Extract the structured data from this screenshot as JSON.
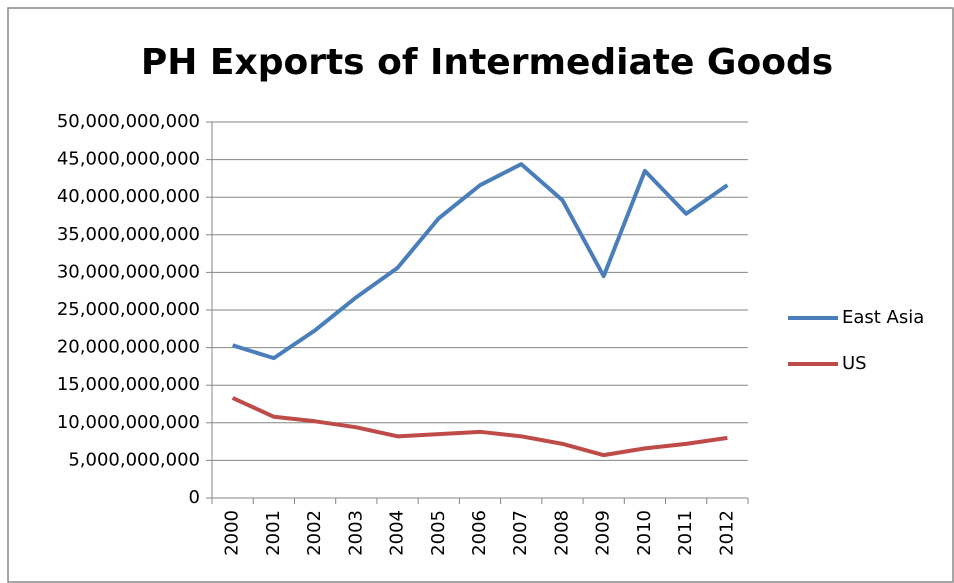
{
  "chart_data": {
    "type": "line",
    "title": "PH Exports of Intermediate Goods",
    "categories": [
      "2000",
      "2001",
      "2002",
      "2003",
      "2004",
      "2005",
      "2006",
      "2007",
      "2008",
      "2009",
      "2010",
      "2011",
      "2012"
    ],
    "series": [
      {
        "name": "East Asia",
        "color": "#4a7ebb",
        "values": [
          20300000000,
          18600000000,
          22300000000,
          26700000000,
          30600000000,
          37200000000,
          41600000000,
          44400000000,
          39600000000,
          29500000000,
          43500000000,
          37800000000,
          41600000000
        ]
      },
      {
        "name": "US",
        "color": "#be4b48",
        "values": [
          13300000000,
          10800000000,
          10200000000,
          9400000000,
          8200000000,
          8500000000,
          8800000000,
          8200000000,
          7200000000,
          5700000000,
          6600000000,
          7200000000,
          8000000000
        ]
      }
    ],
    "ylim": [
      0,
      50000000000
    ],
    "yticks": [
      0,
      {
        "value": 5000000000,
        "label": "5,000,000,000"
      },
      {
        "value": 10000000000,
        "label": "10,000,000,000"
      },
      {
        "value": 15000000000,
        "label": "15,000,000,000"
      },
      {
        "value": 20000000000,
        "label": "20,000,000,000"
      },
      {
        "value": 25000000000,
        "label": "25,000,000,000"
      },
      {
        "value": 30000000000,
        "label": "30,000,000,000"
      },
      {
        "value": 35000000000,
        "label": "35,000,000,000"
      },
      {
        "value": 40000000000,
        "label": "40,000,000,000"
      },
      {
        "value": 45000000000,
        "label": "45,000,000,000"
      },
      {
        "value": 50000000000,
        "label": "50,000,000,000"
      }
    ],
    "grid": true,
    "legend": "right"
  }
}
